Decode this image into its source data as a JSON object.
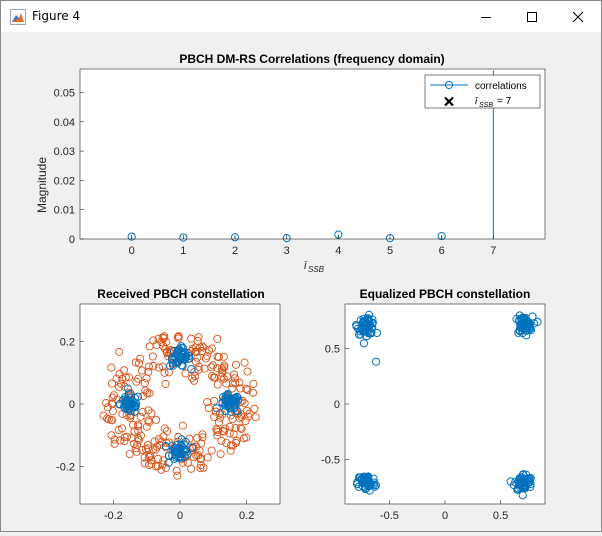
{
  "window": {
    "title": "Figure 4"
  },
  "icons": {
    "app": "matlab-figure-icon",
    "minimize": "minimize-icon",
    "maximize": "maximize-icon",
    "close": "close-icon"
  },
  "colors": {
    "blue": "#0072bd",
    "orange": "#d95319",
    "axis": "#262626"
  },
  "chart_data": [
    {
      "type": "stem",
      "title": "PBCH DM-RS Correlations (frequency domain)",
      "xlabel": "ī_SSB",
      "ylabel": "Magnitude",
      "x": [
        0,
        1,
        2,
        3,
        4,
        5,
        6,
        7
      ],
      "values": [
        0.0008,
        0.0005,
        0.0006,
        0.0003,
        0.0015,
        0.0003,
        0.001,
        0.0575
      ],
      "xlim": [
        -1,
        8
      ],
      "ylim": [
        0,
        0.058
      ],
      "xticks": [
        "0",
        "1",
        "2",
        "3",
        "4",
        "5",
        "6",
        "7"
      ],
      "yticks": [
        "0",
        "0.01",
        "0.02",
        "0.03",
        "0.04",
        "0.05"
      ],
      "legend": {
        "location": "top-right",
        "entries": [
          {
            "label": "correlations",
            "marker": "line-circle"
          },
          {
            "label": "ī_SSB = 7",
            "marker": "x"
          }
        ]
      },
      "detected": {
        "x": 7,
        "label": "ī_SSB = 7"
      }
    },
    {
      "type": "scatter",
      "title": "Received PBCH constellation",
      "xlim": [
        -0.3,
        0.3
      ],
      "ylim": [
        -0.32,
        0.32
      ],
      "xticks": [
        "-0.2",
        "0",
        "0.2"
      ],
      "yticks": [
        "-0.2",
        "0",
        "0.2"
      ],
      "series": [
        {
          "marker": "circle",
          "description": "scattered ring",
          "center": [
            0,
            0
          ],
          "radius": 0.22,
          "spread": 0.04
        },
        {
          "marker": "circle",
          "clusters": [
            [
              0,
              0.15
            ],
            [
              -0.15,
              0
            ],
            [
              0.15,
              0
            ],
            [
              0,
              -0.15
            ]
          ],
          "spread": 0.015
        }
      ]
    },
    {
      "type": "scatter",
      "title": "Equalized PBCH constellation",
      "xlim": [
        -0.9,
        0.9
      ],
      "ylim": [
        -0.9,
        0.9
      ],
      "xticks": [
        "-0.5",
        "0",
        "0.5"
      ],
      "yticks": [
        "-0.5",
        "0",
        "0.5"
      ],
      "series": [
        {
          "marker": "circle",
          "clusters": [
            [
              -0.707,
              0.707
            ],
            [
              0.707,
              0.707
            ],
            [
              -0.707,
              -0.707
            ],
            [
              0.707,
              -0.707
            ]
          ],
          "spread": 0.04,
          "outliers": [
            [
              -0.62,
              0.38
            ]
          ]
        }
      ]
    }
  ]
}
